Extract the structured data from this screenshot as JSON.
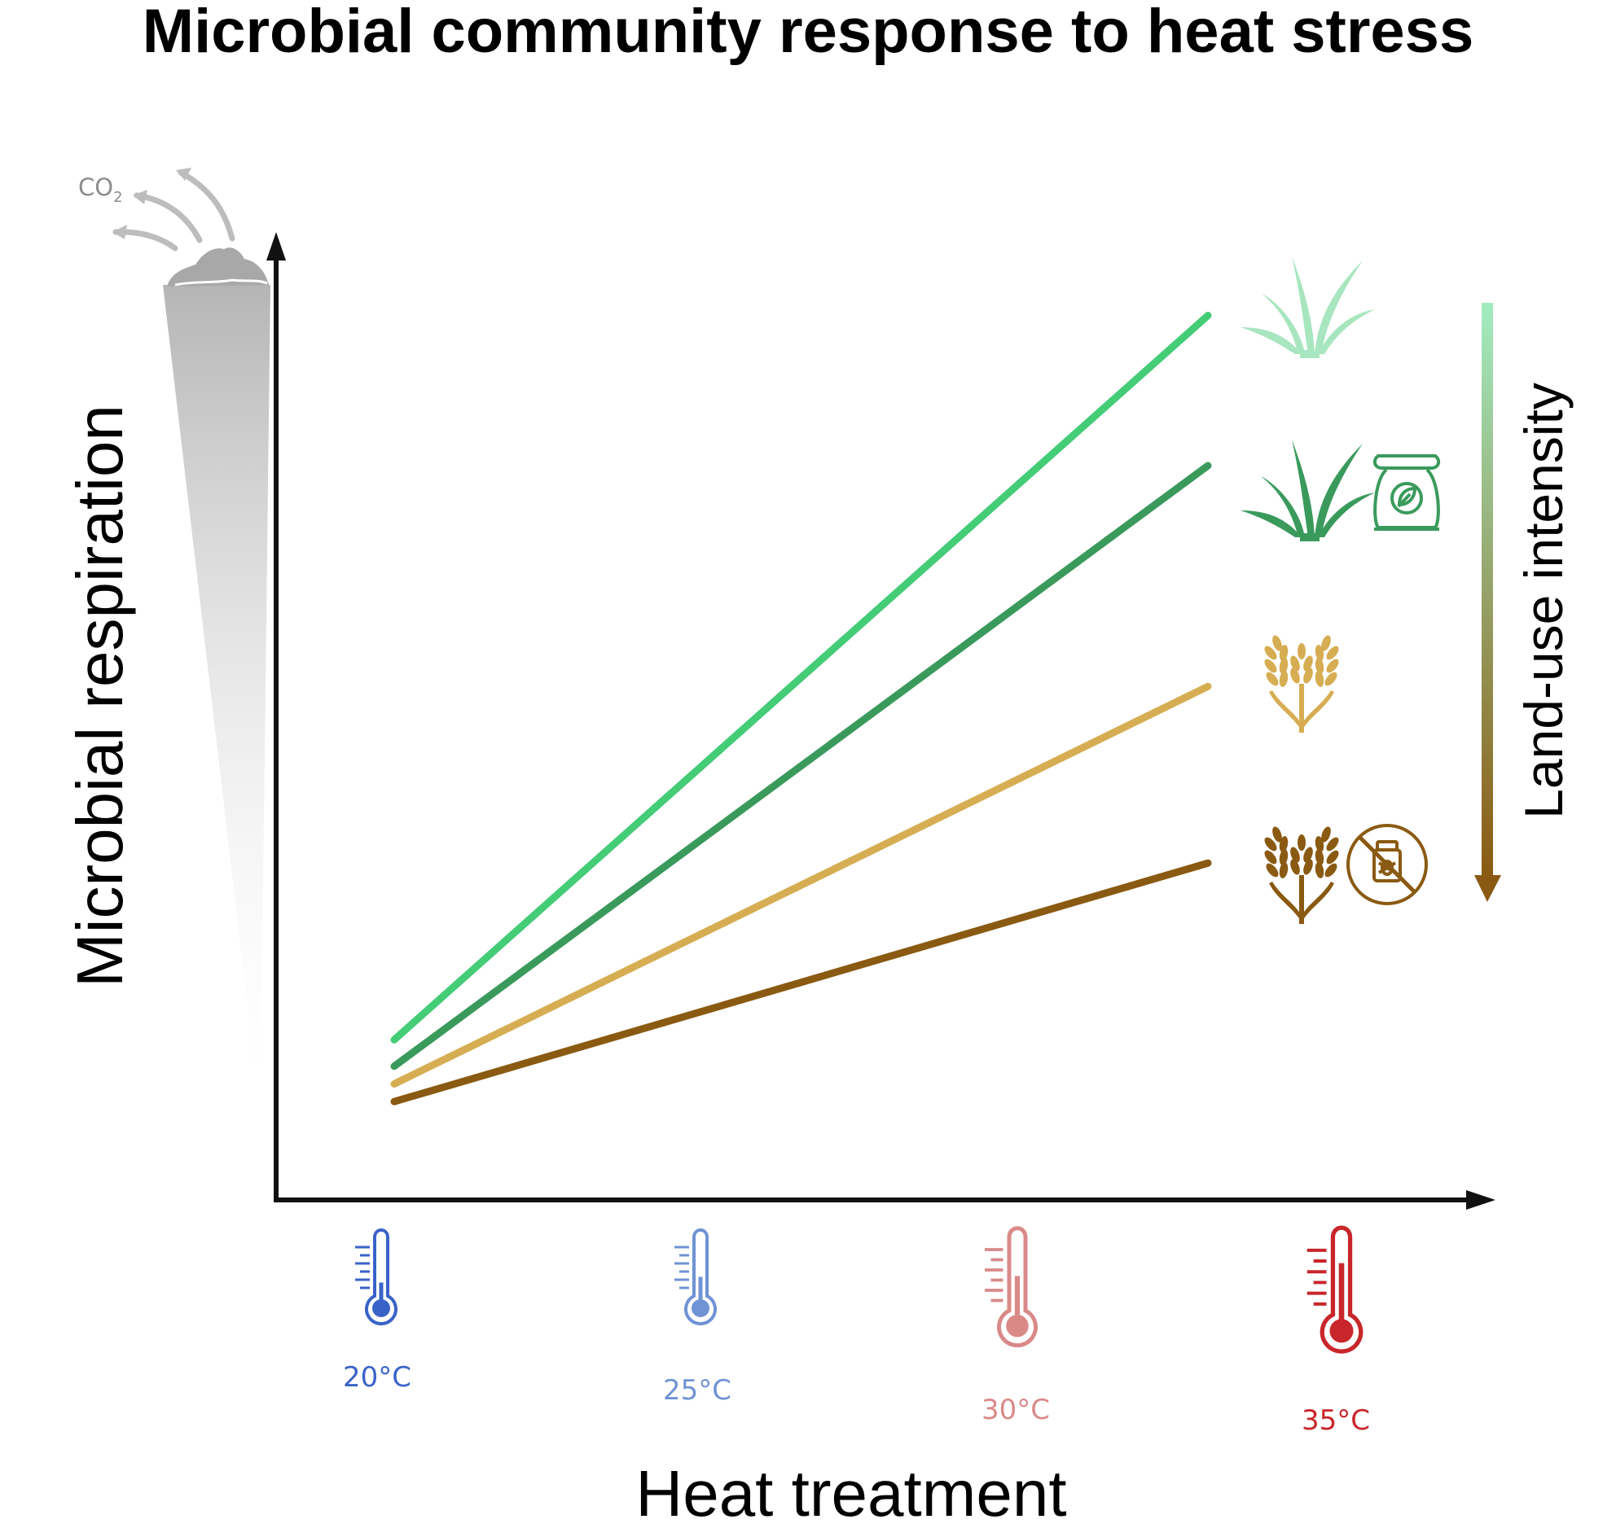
{
  "title": "Microbial community response to heat stress",
  "co2_label": {
    "base": "CO",
    "sub": "2"
  },
  "y_axis_label": "Microbial respiration",
  "x_axis_label": "Heat treatment",
  "gradient_label": "Land-use intensity",
  "temperatures": [
    "20°C",
    "25°C",
    "30°C",
    "35°C"
  ],
  "colors": {
    "t20": "#3a63c8",
    "t25": "#6f93d4",
    "t30": "#d98a88",
    "t35": "#c8262b",
    "grassland_light": "#44cc77",
    "grassland_fertilized": "#3a9a5c",
    "cropland": "#d6ad52",
    "cropland_pesticide": "#8a5a12",
    "gradient_top": "#a2ecc0",
    "gradient_bottom": "#8a5a12"
  },
  "chart_data": {
    "type": "line",
    "xlabel": "Heat treatment",
    "ylabel": "Microbial respiration",
    "categories": [
      "20°C",
      "25°C",
      "30°C",
      "35°C"
    ],
    "series": [
      {
        "start": 0.15,
        "end": 0.97
      },
      {
        "start": 0.12,
        "end": 0.8
      },
      {
        "start": 0.1,
        "end": 0.55
      },
      {
        "start": 0.08,
        "end": 0.35
      }
    ]
  },
  "icons": {
    "legend": [
      "grass-icon",
      "grass-icon",
      "fertilizer-bag-icon",
      "wheat-icon",
      "wheat-icon",
      "no-pesticide-icon"
    ],
    "temperature": [
      "thermometer-icon",
      "thermometer-icon",
      "thermometer-icon",
      "thermometer-icon"
    ],
    "soil": "soil-pile-icon"
  }
}
